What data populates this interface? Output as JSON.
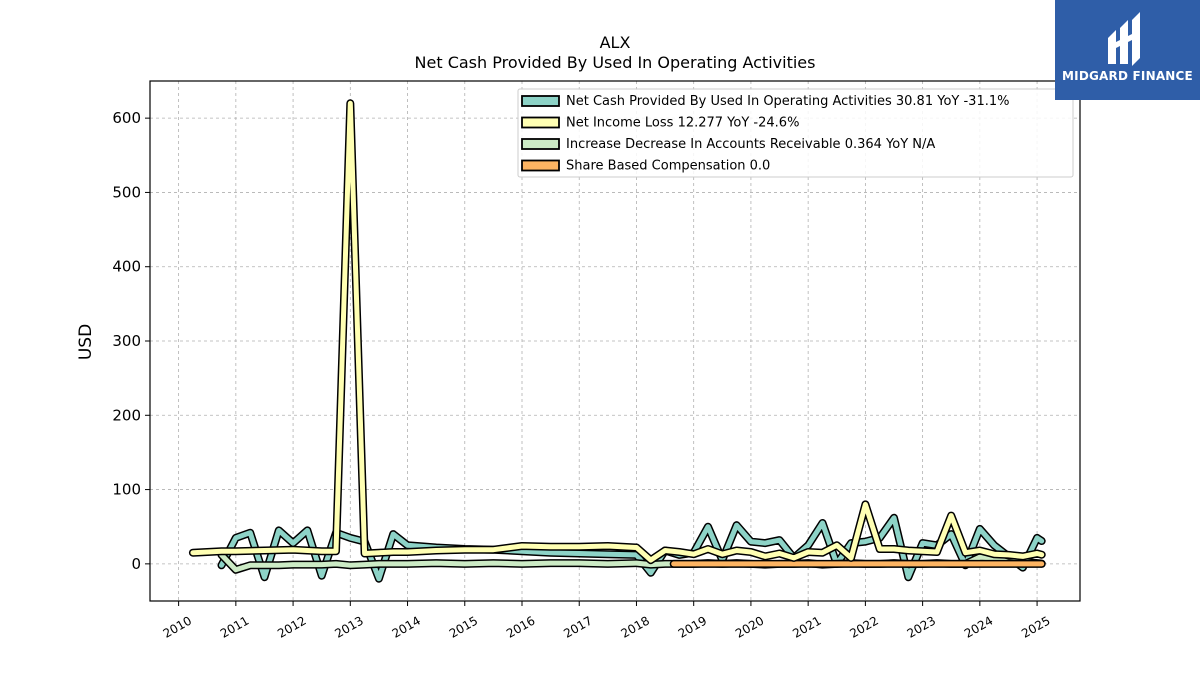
{
  "brand": {
    "name": "MIDGARD FINANCE",
    "bg_color": "#2f5ea8"
  },
  "chart_data": {
    "type": "line",
    "title": "ALX",
    "subtitle": "Net Cash Provided By Used In Operating Activities",
    "ylabel": "USD",
    "xlabel": "",
    "xlim": [
      2009.5,
      2025.75
    ],
    "ylim": [
      -50,
      650
    ],
    "grid": true,
    "legend_position": "top-right",
    "x_ticks": [
      "2010",
      "2011",
      "2012",
      "2013",
      "2014",
      "2015",
      "2016",
      "2017",
      "2018",
      "2019",
      "2020",
      "2021",
      "2022",
      "2023",
      "2024",
      "2025"
    ],
    "y_ticks": [
      "0",
      "100",
      "200",
      "300",
      "400",
      "500",
      "600"
    ],
    "series": [
      {
        "name": "Net Cash Provided By Used In Operating Activities  30.81 YoY -31.1%",
        "color": "#8dd3c7",
        "points": [
          [
            2010.75,
            -2
          ],
          [
            2011.0,
            35
          ],
          [
            2011.25,
            42
          ],
          [
            2011.5,
            -18
          ],
          [
            2011.75,
            45
          ],
          [
            2012.0,
            28
          ],
          [
            2012.25,
            45
          ],
          [
            2012.5,
            -16
          ],
          [
            2012.75,
            42
          ],
          [
            2013.0,
            35
          ],
          [
            2013.25,
            30
          ],
          [
            2013.5,
            -20
          ],
          [
            2013.75,
            40
          ],
          [
            2014.0,
            25
          ],
          [
            2014.5,
            22
          ],
          [
            2015.0,
            20
          ],
          [
            2015.5,
            19
          ],
          [
            2016.0,
            17
          ],
          [
            2016.5,
            15
          ],
          [
            2017.0,
            14
          ],
          [
            2017.5,
            13
          ],
          [
            2018.0,
            12
          ],
          [
            2018.25,
            -12
          ],
          [
            2018.5,
            18
          ],
          [
            2018.75,
            12
          ],
          [
            2019.0,
            15
          ],
          [
            2019.25,
            50
          ],
          [
            2019.5,
            5
          ],
          [
            2019.75,
            52
          ],
          [
            2020.0,
            30
          ],
          [
            2020.25,
            28
          ],
          [
            2020.5,
            32
          ],
          [
            2020.75,
            8
          ],
          [
            2021.0,
            25
          ],
          [
            2021.25,
            55
          ],
          [
            2021.5,
            0
          ],
          [
            2021.75,
            28
          ],
          [
            2022.0,
            30
          ],
          [
            2022.25,
            35
          ],
          [
            2022.5,
            62
          ],
          [
            2022.75,
            -18
          ],
          [
            2023.0,
            28
          ],
          [
            2023.25,
            25
          ],
          [
            2023.5,
            40
          ],
          [
            2023.75,
            -2
          ],
          [
            2024.0,
            47
          ],
          [
            2024.25,
            25
          ],
          [
            2024.5,
            10
          ],
          [
            2024.75,
            -5
          ],
          [
            2025.0,
            35
          ],
          [
            2025.08,
            30.81
          ]
        ]
      },
      {
        "name": "Net Income Loss  12.277 YoY -24.6%",
        "color": "#ffffb3",
        "points": [
          [
            2010.25,
            15
          ],
          [
            2010.75,
            17
          ],
          [
            2011.0,
            17
          ],
          [
            2011.5,
            18
          ],
          [
            2012.0,
            19
          ],
          [
            2012.5,
            17
          ],
          [
            2012.75,
            17
          ],
          [
            2013.0,
            620
          ],
          [
            2013.25,
            14
          ],
          [
            2013.5,
            15
          ],
          [
            2013.75,
            16
          ],
          [
            2014.0,
            16
          ],
          [
            2014.5,
            18
          ],
          [
            2015.0,
            19
          ],
          [
            2015.5,
            19
          ],
          [
            2016.0,
            24
          ],
          [
            2016.5,
            23
          ],
          [
            2017.0,
            23
          ],
          [
            2017.5,
            24
          ],
          [
            2018.0,
            22
          ],
          [
            2018.25,
            5
          ],
          [
            2018.5,
            18
          ],
          [
            2018.75,
            16
          ],
          [
            2019.0,
            13
          ],
          [
            2019.25,
            20
          ],
          [
            2019.5,
            13
          ],
          [
            2019.75,
            18
          ],
          [
            2020.0,
            16
          ],
          [
            2020.25,
            10
          ],
          [
            2020.5,
            14
          ],
          [
            2020.75,
            8
          ],
          [
            2021.0,
            16
          ],
          [
            2021.25,
            15
          ],
          [
            2021.5,
            25
          ],
          [
            2021.75,
            8
          ],
          [
            2022.0,
            80
          ],
          [
            2022.25,
            20
          ],
          [
            2022.5,
            20
          ],
          [
            2022.75,
            18
          ],
          [
            2023.0,
            17
          ],
          [
            2023.25,
            16
          ],
          [
            2023.5,
            65
          ],
          [
            2023.75,
            15
          ],
          [
            2024.0,
            18
          ],
          [
            2024.25,
            13
          ],
          [
            2024.5,
            12
          ],
          [
            2024.75,
            10
          ],
          [
            2025.0,
            14
          ],
          [
            2025.08,
            12.277
          ]
        ]
      },
      {
        "name": "Increase Decrease In Accounts Receivable  0.364 YoY N/A",
        "color": "#ccebc5",
        "points": [
          [
            2010.75,
            12
          ],
          [
            2011.0,
            -8
          ],
          [
            2011.25,
            -2
          ],
          [
            2011.5,
            -2
          ],
          [
            2011.75,
            -2
          ],
          [
            2012.0,
            -1
          ],
          [
            2012.25,
            -1
          ],
          [
            2012.5,
            -1
          ],
          [
            2012.75,
            0
          ],
          [
            2013.0,
            -2
          ],
          [
            2013.25,
            -1
          ],
          [
            2013.5,
            0
          ],
          [
            2013.75,
            0
          ],
          [
            2014.0,
            0
          ],
          [
            2014.5,
            1
          ],
          [
            2015.0,
            0
          ],
          [
            2015.5,
            1
          ],
          [
            2016.0,
            0
          ],
          [
            2016.5,
            1
          ],
          [
            2017.0,
            1
          ],
          [
            2017.5,
            0
          ],
          [
            2018.0,
            1
          ],
          [
            2018.25,
            -1
          ],
          [
            2018.5,
            0
          ],
          [
            2018.75,
            0
          ],
          [
            2019.0,
            0
          ],
          [
            2019.25,
            1
          ],
          [
            2019.5,
            0
          ],
          [
            2019.75,
            1
          ],
          [
            2020.0,
            0
          ],
          [
            2020.25,
            -1
          ],
          [
            2020.5,
            0
          ],
          [
            2020.75,
            0
          ],
          [
            2021.0,
            1
          ],
          [
            2021.25,
            -1
          ],
          [
            2021.5,
            0
          ],
          [
            2021.75,
            1
          ],
          [
            2022.0,
            0
          ],
          [
            2022.25,
            0
          ],
          [
            2022.5,
            1
          ],
          [
            2022.75,
            0
          ],
          [
            2023.0,
            0
          ],
          [
            2023.25,
            1
          ],
          [
            2023.5,
            0
          ],
          [
            2023.75,
            0
          ],
          [
            2024.0,
            9
          ],
          [
            2024.25,
            8
          ],
          [
            2024.5,
            2
          ],
          [
            2024.75,
            3
          ],
          [
            2025.0,
            1
          ],
          [
            2025.08,
            0.364
          ]
        ]
      },
      {
        "name": "Share Based Compensation  0.0",
        "color": "#fdb462",
        "points": [
          [
            2018.65,
            0
          ],
          [
            2019.0,
            0
          ],
          [
            2020.0,
            0
          ],
          [
            2021.0,
            0
          ],
          [
            2022.0,
            0
          ],
          [
            2023.0,
            0
          ],
          [
            2024.0,
            0
          ],
          [
            2025.08,
            0
          ]
        ]
      }
    ]
  }
}
